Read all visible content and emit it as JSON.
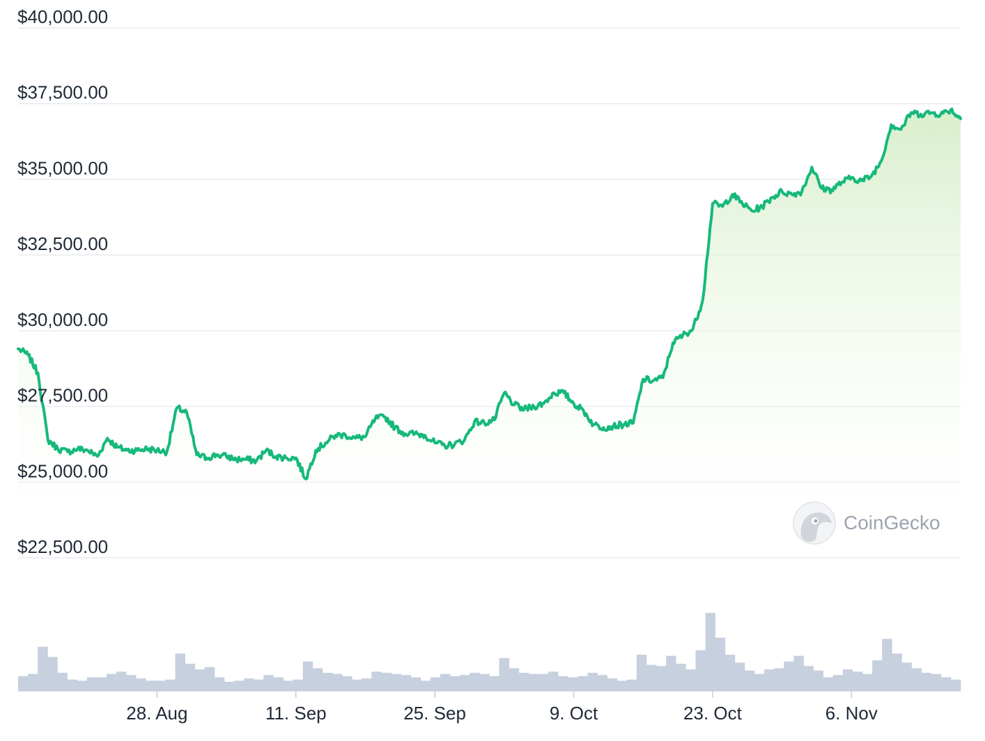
{
  "chart_data": {
    "type": "area",
    "title": "",
    "xlabel": "",
    "ylabel": "",
    "currency_prefix": "$",
    "y_ticks": [
      22500,
      25000,
      27500,
      30000,
      32500,
      35000,
      37500,
      40000
    ],
    "y_tick_labels": [
      "$22,500.00",
      "$25,000.00",
      "$27,500.00",
      "$30,000.00",
      "$32,500.00",
      "$35,000.00",
      "$37,500.00",
      "$40,000.00"
    ],
    "ylim": [
      22500,
      40000
    ],
    "x_range": [
      "2023-08-14",
      "2023-11-17"
    ],
    "x_ticks": [
      "2023-08-28",
      "2023-09-11",
      "2023-09-25",
      "2023-10-09",
      "2023-10-23",
      "2023-11-06"
    ],
    "x_tick_labels": [
      "28. Aug",
      "11. Sep",
      "25. Sep",
      "9. Oct",
      "23. Oct",
      "6. Nov"
    ],
    "grid": true,
    "legend": "none",
    "line_color": "#16b97a",
    "fill_top_color": "#d6eec9",
    "volume_color": "#c7d0de",
    "series": [
      {
        "values": [
          [
            "2023-08-14",
            29400
          ],
          [
            "2023-08-15",
            29200
          ],
          [
            "2023-08-16",
            28600
          ],
          [
            "2023-08-17",
            26400
          ],
          [
            "2023-08-18",
            26100
          ],
          [
            "2023-08-19",
            26000
          ],
          [
            "2023-08-20",
            26100
          ],
          [
            "2023-08-21",
            26050
          ],
          [
            "2023-08-22",
            25850
          ],
          [
            "2023-08-23",
            26450
          ],
          [
            "2023-08-24",
            26150
          ],
          [
            "2023-08-25",
            26050
          ],
          [
            "2023-08-26",
            26050
          ],
          [
            "2023-08-27",
            26100
          ],
          [
            "2023-08-28",
            26050
          ],
          [
            "2023-08-29",
            26000
          ],
          [
            "2023-08-30",
            27450
          ],
          [
            "2023-08-31",
            27300
          ],
          [
            "2023-09-01",
            25900
          ],
          [
            "2023-09-02",
            25800
          ],
          [
            "2023-09-03",
            25900
          ],
          [
            "2023-09-04",
            25850
          ],
          [
            "2023-09-05",
            25750
          ],
          [
            "2023-09-06",
            25750
          ],
          [
            "2023-09-07",
            25700
          ],
          [
            "2023-09-08",
            26050
          ],
          [
            "2023-09-09",
            25850
          ],
          [
            "2023-09-10",
            25800
          ],
          [
            "2023-09-11",
            25800
          ],
          [
            "2023-09-12",
            25100
          ],
          [
            "2023-09-13",
            26050
          ],
          [
            "2023-09-14",
            26300
          ],
          [
            "2023-09-15",
            26550
          ],
          [
            "2023-09-16",
            26550
          ],
          [
            "2023-09-17",
            26450
          ],
          [
            "2023-09-18",
            26500
          ],
          [
            "2023-09-19",
            27100
          ],
          [
            "2023-09-20",
            27150
          ],
          [
            "2023-09-21",
            26800
          ],
          [
            "2023-09-22",
            26600
          ],
          [
            "2023-09-23",
            26600
          ],
          [
            "2023-09-24",
            26550
          ],
          [
            "2023-09-25",
            26300
          ],
          [
            "2023-09-26",
            26200
          ],
          [
            "2023-09-27",
            26250
          ],
          [
            "2023-09-28",
            26400
          ],
          [
            "2023-09-29",
            27000
          ],
          [
            "2023-09-30",
            26950
          ],
          [
            "2023-10-01",
            27050
          ],
          [
            "2023-10-02",
            27950
          ],
          [
            "2023-10-03",
            27550
          ],
          [
            "2023-10-04",
            27400
          ],
          [
            "2023-10-05",
            27500
          ],
          [
            "2023-10-06",
            27600
          ],
          [
            "2023-10-07",
            27950
          ],
          [
            "2023-10-08",
            27950
          ],
          [
            "2023-10-09",
            27600
          ],
          [
            "2023-10-10",
            27350
          ],
          [
            "2023-10-11",
            26900
          ],
          [
            "2023-10-12",
            26800
          ],
          [
            "2023-10-13",
            26850
          ],
          [
            "2023-10-14",
            26900
          ],
          [
            "2023-10-15",
            26950
          ],
          [
            "2023-10-16",
            28400
          ],
          [
            "2023-10-17",
            28350
          ],
          [
            "2023-10-18",
            28450
          ],
          [
            "2023-10-19",
            29600
          ],
          [
            "2023-10-20",
            29850
          ],
          [
            "2023-10-21",
            30050
          ],
          [
            "2023-10-22",
            31000
          ],
          [
            "2023-10-23",
            34200
          ],
          [
            "2023-10-24",
            34100
          ],
          [
            "2023-10-25",
            34500
          ],
          [
            "2023-10-26",
            34200
          ],
          [
            "2023-10-27",
            33950
          ],
          [
            "2023-10-28",
            34100
          ],
          [
            "2023-10-29",
            34400
          ],
          [
            "2023-10-30",
            34600
          ],
          [
            "2023-10-31",
            34500
          ],
          [
            "2023-11-01",
            34600
          ],
          [
            "2023-11-02",
            35400
          ],
          [
            "2023-11-03",
            34700
          ],
          [
            "2023-11-04",
            34650
          ],
          [
            "2023-11-05",
            34900
          ],
          [
            "2023-11-06",
            35050
          ],
          [
            "2023-11-07",
            34950
          ],
          [
            "2023-11-08",
            35100
          ],
          [
            "2023-11-09",
            35600
          ],
          [
            "2023-11-10",
            36800
          ],
          [
            "2023-11-11",
            36650
          ],
          [
            "2023-11-12",
            37200
          ],
          [
            "2023-11-13",
            37150
          ],
          [
            "2023-11-14",
            37200
          ],
          [
            "2023-11-15",
            37150
          ],
          [
            "2023-11-16",
            37300
          ],
          [
            "2023-11-17",
            37000
          ]
        ]
      }
    ],
    "volume": [
      1.3,
      1.5,
      3.9,
      3.0,
      1.6,
      1.0,
      0.9,
      1.2,
      1.2,
      1.5,
      1.7,
      1.4,
      1.1,
      0.9,
      0.9,
      1.0,
      3.3,
      2.4,
      1.9,
      2.1,
      1.2,
      0.8,
      0.9,
      1.1,
      1.0,
      1.4,
      1.2,
      0.9,
      1.0,
      2.6,
      2.0,
      1.6,
      1.5,
      1.3,
      1.0,
      1.1,
      1.7,
      1.6,
      1.5,
      1.4,
      1.2,
      0.9,
      1.2,
      1.5,
      1.3,
      1.4,
      1.6,
      1.5,
      1.3,
      2.9,
      2.0,
      1.6,
      1.5,
      1.5,
      1.7,
      1.3,
      1.2,
      1.3,
      1.6,
      1.4,
      1.1,
      0.9,
      1.0,
      3.2,
      2.3,
      2.2,
      3.1,
      2.4,
      1.9,
      3.6,
      6.9,
      4.7,
      3.2,
      2.5,
      1.8,
      1.5,
      1.9,
      2.0,
      2.6,
      3.1,
      2.2,
      1.8,
      1.2,
      1.4,
      1.9,
      1.7,
      1.5,
      2.7,
      4.6,
      3.3,
      2.5,
      2.0,
      1.6,
      1.5,
      1.2,
      1.0
    ],
    "watermark": "CoinGecko"
  }
}
